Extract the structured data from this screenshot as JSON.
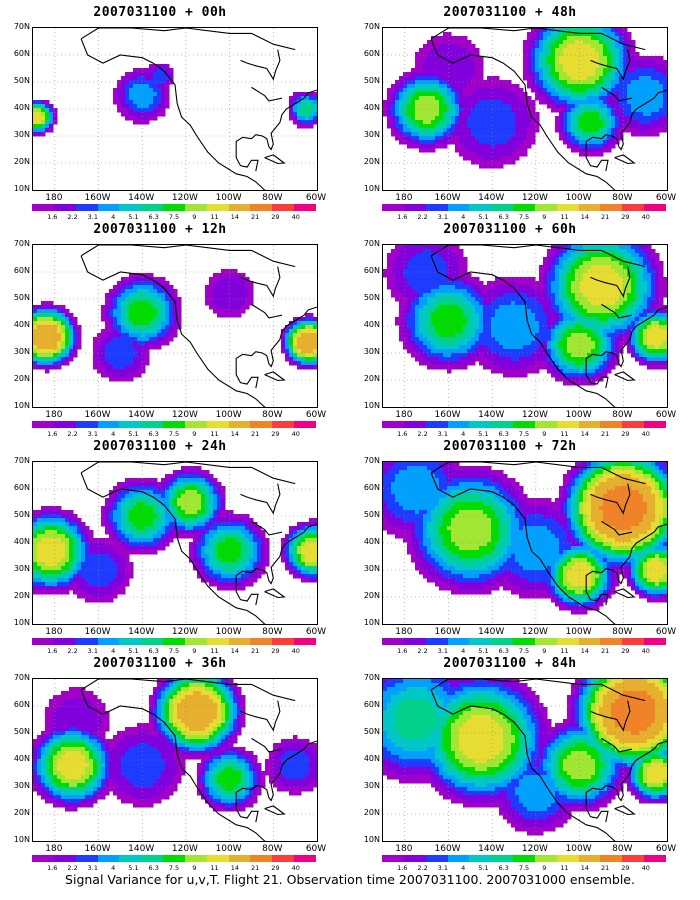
{
  "caption": "Signal Variance for u,v,T. Flight 21. Observation time 2007031100. 2007031000 ensemble.",
  "colorbar": {
    "ticks": [
      "1.6",
      "2.2",
      "3.1",
      "4",
      "5.1",
      "6.3",
      "7.5",
      "9",
      "11",
      "14",
      "21",
      "29",
      "40"
    ],
    "colors": [
      "#a000c8",
      "#8200dc",
      "#1e3cff",
      "#00a0ff",
      "#00c8c8",
      "#00d28c",
      "#00dc00",
      "#a0e632",
      "#e6dc32",
      "#e6af2d",
      "#f08228",
      "#fa3c3c",
      "#f00082"
    ]
  },
  "axes": {
    "ylabels": [
      "70N",
      "60N",
      "50N",
      "40N",
      "30N",
      "20N",
      "10N"
    ],
    "xlabels": [
      "180",
      "160W",
      "140W",
      "120W",
      "100W",
      "80W",
      "60W"
    ]
  },
  "chart_data": [
    {
      "type": "heatmap",
      "title": "2007031100 + 00h",
      "lon_range": [
        -190,
        -60
      ],
      "lat_range": [
        10,
        70
      ],
      "blobs": [
        {
          "lon": -188,
          "lat": 37,
          "r": 6,
          "peak": 14
        },
        {
          "lon": -140,
          "lat": 45,
          "r": 12,
          "peak": 5.1
        },
        {
          "lon": -132,
          "lat": 52,
          "r": 7,
          "peak": 4
        },
        {
          "lon": -65,
          "lat": 40,
          "r": 7,
          "peak": 7.5
        }
      ]
    },
    {
      "type": "heatmap",
      "title": "2007031100 + 12h",
      "lon_range": [
        -190,
        -60
      ],
      "lat_range": [
        10,
        70
      ],
      "blobs": [
        {
          "lon": -184,
          "lat": 36,
          "r": 10,
          "peak": 21
        },
        {
          "lon": -140,
          "lat": 45,
          "r": 14,
          "peak": 9
        },
        {
          "lon": -150,
          "lat": 30,
          "r": 14,
          "peak": 4
        },
        {
          "lon": -64,
          "lat": 34,
          "r": 8,
          "peak": 21
        },
        {
          "lon": -100,
          "lat": 52,
          "r": 14,
          "peak": 3.1
        }
      ]
    },
    {
      "type": "heatmap",
      "title": "2007031100 + 24h",
      "lon_range": [
        -190,
        -60
      ],
      "lat_range": [
        10,
        70
      ],
      "blobs": [
        {
          "lon": -182,
          "lat": 37,
          "r": 14,
          "peak": 14
        },
        {
          "lon": -140,
          "lat": 50,
          "r": 14,
          "peak": 9
        },
        {
          "lon": -118,
          "lat": 55,
          "r": 12,
          "peak": 11
        },
        {
          "lon": -100,
          "lat": 37,
          "r": 14,
          "peak": 9
        },
        {
          "lon": -62,
          "lat": 37,
          "r": 10,
          "peak": 14
        },
        {
          "lon": -160,
          "lat": 30,
          "r": 16,
          "peak": 4
        }
      ]
    },
    {
      "type": "heatmap",
      "title": "2007031100 + 36h",
      "lon_range": [
        -190,
        -60
      ],
      "lat_range": [
        10,
        70
      ],
      "blobs": [
        {
          "lon": -172,
          "lat": 38,
          "r": 14,
          "peak": 14
        },
        {
          "lon": -115,
          "lat": 58,
          "r": 14,
          "peak": 21
        },
        {
          "lon": -100,
          "lat": 33,
          "r": 12,
          "peak": 9
        },
        {
          "lon": -140,
          "lat": 38,
          "r": 20,
          "peak": 4
        },
        {
          "lon": -70,
          "lat": 38,
          "r": 14,
          "peak": 4
        },
        {
          "lon": -170,
          "lat": 55,
          "r": 18,
          "peak": 3.1
        }
      ]
    },
    {
      "type": "heatmap",
      "title": "2007031100 + 48h",
      "lon_range": [
        -190,
        -60
      ],
      "lat_range": [
        10,
        70
      ],
      "blobs": [
        {
          "lon": -170,
          "lat": 40,
          "r": 14,
          "peak": 11
        },
        {
          "lon": -100,
          "lat": 58,
          "r": 18,
          "peak": 14
        },
        {
          "lon": -95,
          "lat": 35,
          "r": 12,
          "peak": 9
        },
        {
          "lon": -140,
          "lat": 35,
          "r": 22,
          "peak": 4
        },
        {
          "lon": -70,
          "lat": 45,
          "r": 18,
          "peak": 5.1
        },
        {
          "lon": -160,
          "lat": 55,
          "r": 20,
          "peak": 3.1
        }
      ]
    },
    {
      "type": "heatmap",
      "title": "2007031100 + 60h",
      "lon_range": [
        -190,
        -60
      ],
      "lat_range": [
        10,
        70
      ],
      "blobs": [
        {
          "lon": -160,
          "lat": 42,
          "r": 18,
          "peak": 9
        },
        {
          "lon": -90,
          "lat": 55,
          "r": 20,
          "peak": 14
        },
        {
          "lon": -100,
          "lat": 33,
          "r": 14,
          "peak": 11
        },
        {
          "lon": -65,
          "lat": 36,
          "r": 10,
          "peak": 14
        },
        {
          "lon": -130,
          "lat": 40,
          "r": 22,
          "peak": 5.1
        },
        {
          "lon": -170,
          "lat": 60,
          "r": 20,
          "peak": 4
        }
      ]
    },
    {
      "type": "heatmap",
      "title": "2007031100 + 72h",
      "lon_range": [
        -190,
        -60
      ],
      "lat_range": [
        10,
        70
      ],
      "blobs": [
        {
          "lon": -150,
          "lat": 45,
          "r": 22,
          "peak": 11
        },
        {
          "lon": -80,
          "lat": 53,
          "r": 18,
          "peak": 29
        },
        {
          "lon": -100,
          "lat": 28,
          "r": 12,
          "peak": 14
        },
        {
          "lon": -65,
          "lat": 30,
          "r": 10,
          "peak": 14
        },
        {
          "lon": -120,
          "lat": 38,
          "r": 22,
          "peak": 5.1
        },
        {
          "lon": -175,
          "lat": 60,
          "r": 22,
          "peak": 5.1
        }
      ]
    },
    {
      "type": "heatmap",
      "title": "2007031100 + 84h",
      "lon_range": [
        -190,
        -60
      ],
      "lat_range": [
        10,
        70
      ],
      "blobs": [
        {
          "lon": -145,
          "lat": 48,
          "r": 22,
          "peak": 14
        },
        {
          "lon": -75,
          "lat": 58,
          "r": 18,
          "peak": 29
        },
        {
          "lon": -100,
          "lat": 38,
          "r": 16,
          "peak": 11
        },
        {
          "lon": -65,
          "lat": 35,
          "r": 10,
          "peak": 14
        },
        {
          "lon": -175,
          "lat": 55,
          "r": 24,
          "peak": 7.5
        },
        {
          "lon": -120,
          "lat": 28,
          "r": 18,
          "peak": 5.1
        }
      ]
    }
  ]
}
